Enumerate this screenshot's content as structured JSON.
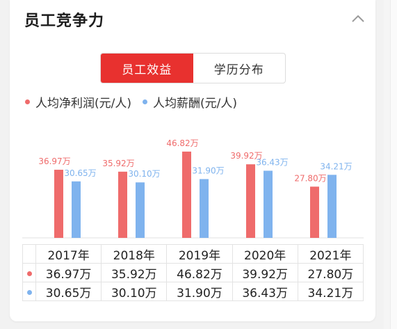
{
  "header": {
    "title": "员工竞争力"
  },
  "tabs": [
    {
      "label": "员工效益",
      "active": true
    },
    {
      "label": "学历分布",
      "active": false
    }
  ],
  "colors": {
    "accent": "#e8312f",
    "series_profit": "#ef6b6b",
    "series_salary": "#7fb3ee"
  },
  "chart_data": {
    "type": "bar",
    "categories": [
      "2017年",
      "2018年",
      "2019年",
      "2020年",
      "2021年"
    ],
    "series": [
      {
        "name": "人均净利润(元/人)",
        "values": [
          36.97,
          35.92,
          46.82,
          39.92,
          27.8
        ],
        "labels": [
          "36.97万",
          "35.92万",
          "46.82万",
          "39.92万",
          "27.80万"
        ]
      },
      {
        "name": "人均薪酬(元/人)",
        "values": [
          30.65,
          30.1,
          31.9,
          36.43,
          34.21
        ],
        "labels": [
          "30.65万",
          "30.10万",
          "31.90万",
          "36.43万",
          "34.21万"
        ]
      }
    ],
    "legend": "top-left"
  },
  "table": {
    "years": [
      "2017年",
      "2018年",
      "2019年",
      "2020年",
      "2021年"
    ],
    "rows": [
      [
        "36.97万",
        "35.92万",
        "46.82万",
        "39.92万",
        "27.80万"
      ],
      [
        "30.65万",
        "30.10万",
        "31.90万",
        "36.43万",
        "34.21万"
      ]
    ]
  }
}
